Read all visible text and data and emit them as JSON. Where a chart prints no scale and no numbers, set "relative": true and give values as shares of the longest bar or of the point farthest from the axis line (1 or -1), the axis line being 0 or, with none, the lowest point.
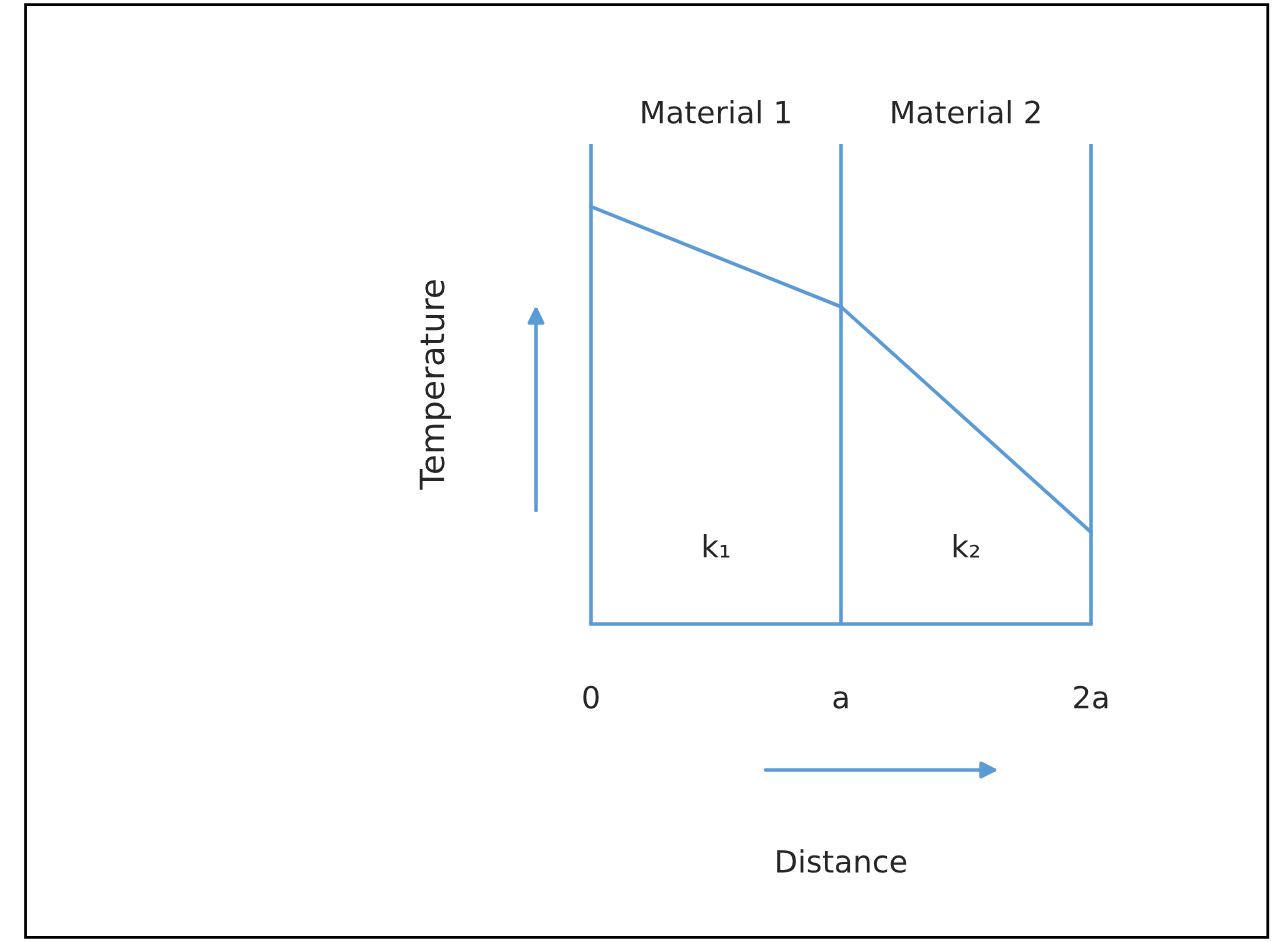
{
  "chart_data": {
    "type": "line",
    "relative": true,
    "ylabel": "Temperature",
    "x": [
      0,
      1,
      2
    ],
    "series": [
      {
        "color": "#5b9bd5",
        "values": [
          1,
          0.76,
          0.22
        ]
      }
    ],
    "xlim": [
      0,
      2
    ],
    "xticks": [
      {
        "value": 0,
        "label": "0"
      },
      {
        "value": 1,
        "label": "a"
      },
      {
        "value": 2,
        "label": "2a"
      }
    ],
    "ref_lines": [
      {
        "axis": "x",
        "value": 0,
        "color": "#5b9bd5"
      },
      {
        "axis": "x",
        "value": 1,
        "color": "#5b9bd5"
      },
      {
        "axis": "x",
        "value": 2,
        "color": "#5b9bd5"
      }
    ],
    "annotations": [
      "Material 1",
      "Material 2",
      "k₁",
      "k₂",
      "Distance"
    ],
    "legend": false,
    "marker": "none",
    "line_style": "solid"
  }
}
